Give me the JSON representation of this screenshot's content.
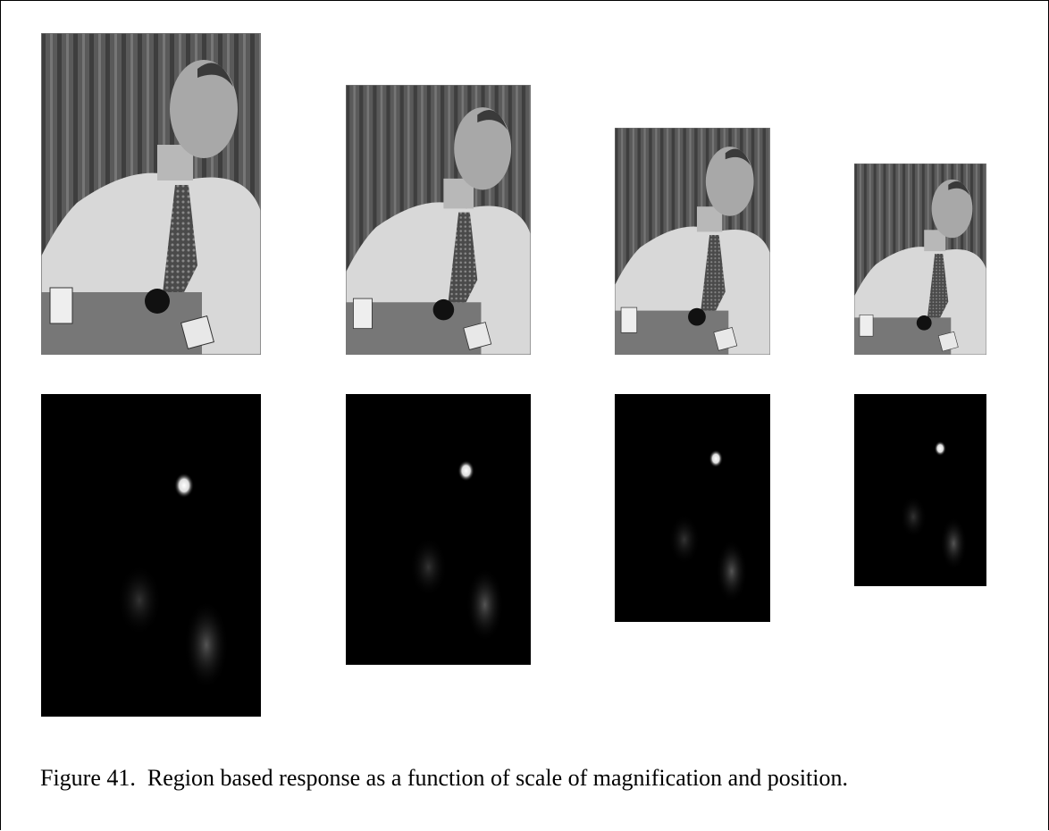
{
  "caption": "Figure 41.  Region based response as a function of scale of magnification and position."
}
